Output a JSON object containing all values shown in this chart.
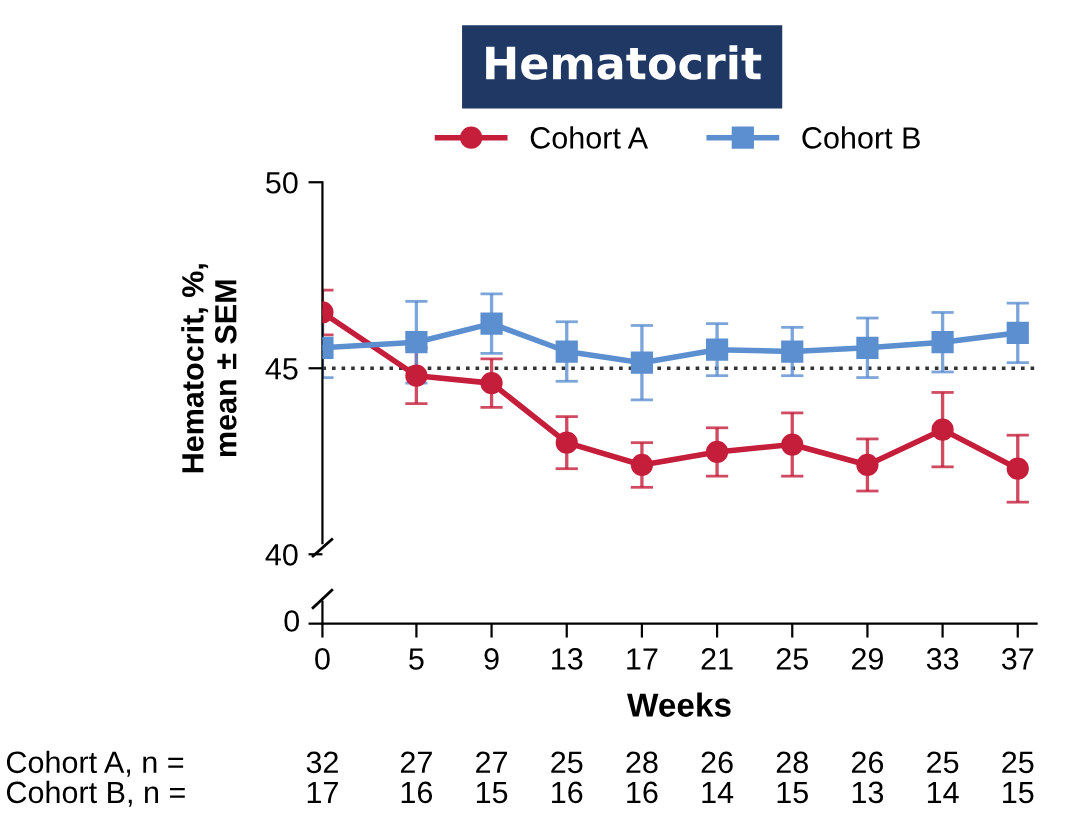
{
  "chart_data": {
    "type": "line",
    "title": "Hematocrit",
    "ylabel": "Hematocrit, %,\nmean ± SEM",
    "xlabel": "Weeks",
    "x": [
      0,
      5,
      9,
      13,
      17,
      21,
      25,
      29,
      33,
      37
    ],
    "xlim": [
      0,
      38
    ],
    "ylim": [
      40,
      50
    ],
    "yticks": [
      40,
      45,
      50
    ],
    "xticks": [
      0,
      5,
      9,
      13,
      17,
      21,
      25,
      29,
      33,
      37
    ],
    "legend": "top",
    "grid": false,
    "line_style": "solid",
    "series": [
      {
        "name": "Cohort A",
        "color": "#c41e3a",
        "marker": "circle",
        "values": [
          46.5,
          44.8,
          44.6,
          43.0,
          42.4,
          42.75,
          42.95,
          42.4,
          43.35,
          42.3
        ],
        "errors": [
          0.6,
          0.75,
          0.65,
          0.7,
          0.6,
          0.65,
          0.85,
          0.7,
          1.0,
          0.9
        ]
      },
      {
        "name": "Cohort B",
        "color": "#5b8fd0",
        "marker": "square",
        "values": [
          45.55,
          45.7,
          46.2,
          45.45,
          45.15,
          45.5,
          45.45,
          45.55,
          45.7,
          45.95
        ],
        "errors": [
          0.8,
          1.1,
          0.8,
          0.8,
          1.0,
          0.7,
          0.65,
          0.8,
          0.8,
          0.8
        ]
      }
    ],
    "ref_lines": [
      {
        "axis": "y",
        "value": 45,
        "line_style": "dotted",
        "color": "#333333"
      }
    ],
    "annotations": [
      "0",
      "Cohort A, n =",
      "32",
      "27",
      "27",
      "25",
      "28",
      "26",
      "28",
      "26",
      "25",
      "25",
      "Cohort B, n =",
      "17",
      "16",
      "15",
      "16",
      "16",
      "14",
      "15",
      "13",
      "14",
      "15"
    ]
  }
}
